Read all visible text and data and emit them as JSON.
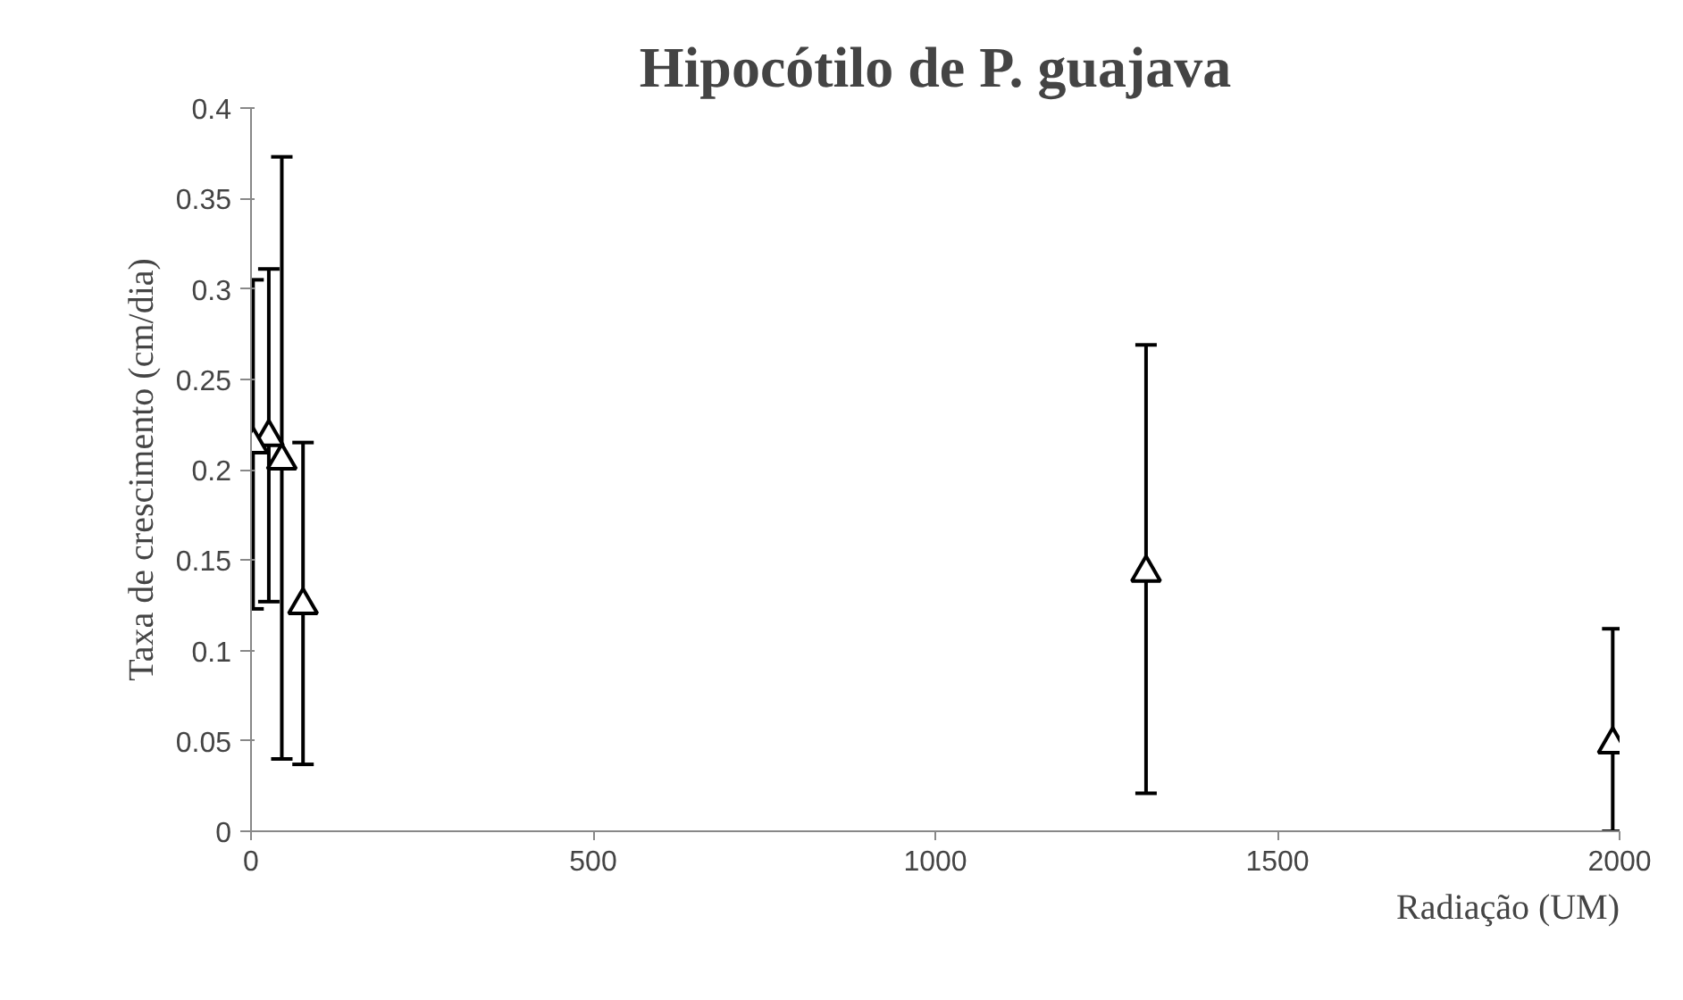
{
  "chart_data": {
    "type": "scatter",
    "title": "Hipocótilo de P. guajava",
    "xlabel": "Radiação (UM)",
    "ylabel": "Taxa de crescimento (cm/dia)",
    "x": [
      3,
      26,
      45,
      76,
      1308,
      1990
    ],
    "values": [
      0.214,
      0.218,
      0.205,
      0.125,
      0.143,
      0.048
    ],
    "errors": [
      [
        0.123,
        0.305
      ],
      [
        0.127,
        0.311
      ],
      [
        0.04,
        0.373
      ],
      [
        0.037,
        0.215
      ],
      [
        0.021,
        0.269
      ],
      [
        0,
        0.112
      ]
    ],
    "color": "#000000",
    "marker": "triangle",
    "grid": false,
    "xlim": [
      0,
      2000
    ],
    "xticks": [
      0,
      500,
      1000,
      1500,
      2000
    ],
    "ylim": [
      0,
      0.4
    ],
    "yticks": [
      0,
      0.05,
      0.1,
      0.15,
      0.2,
      0.25,
      0.3,
      0.35,
      0.4
    ]
  }
}
